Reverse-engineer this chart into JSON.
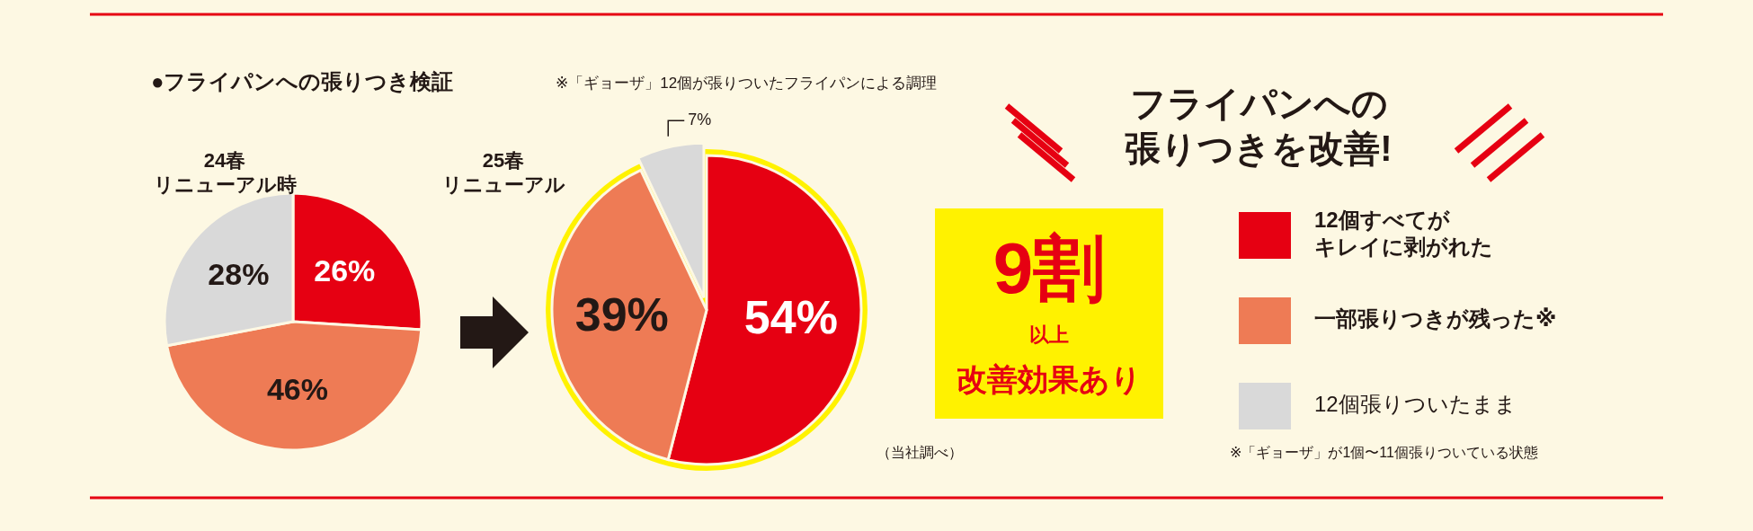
{
  "chart_data": [
    {
      "type": "pie",
      "title": "24春リニューアル時",
      "annotations": [
        "●フライパンへの張りつき検証",
        "※「ギョーザ」12個が張りついたフライパンによる調理"
      ],
      "values": [
        26,
        46,
        28
      ],
      "colors": [
        "#e60012",
        "#ee7b55",
        "#d9d9d9"
      ],
      "value_labels": [
        "26%",
        "46%",
        "28%"
      ]
    },
    {
      "type": "pie",
      "title": "25春リニューアル",
      "categories": [
        "12個すべてがキレイに剥がれた",
        "一部張りつきが残った※",
        "12個張りついたまま"
      ],
      "values": [
        54,
        39,
        7
      ],
      "colors": [
        "#e60012",
        "#ee7b55",
        "#d9d9d9"
      ],
      "value_labels": [
        "54%",
        "39%",
        "7%"
      ],
      "legend": "right",
      "annotations": [
        "（当社調べ）",
        "※「ギョーザ」が1個〜11個張りついている状態"
      ]
    },
    {
      "type": "other",
      "title": "フライパンへの張りつきを改善!",
      "annotations": [
        "9割",
        "以上",
        "改善効果あり"
      ]
    }
  ]
}
